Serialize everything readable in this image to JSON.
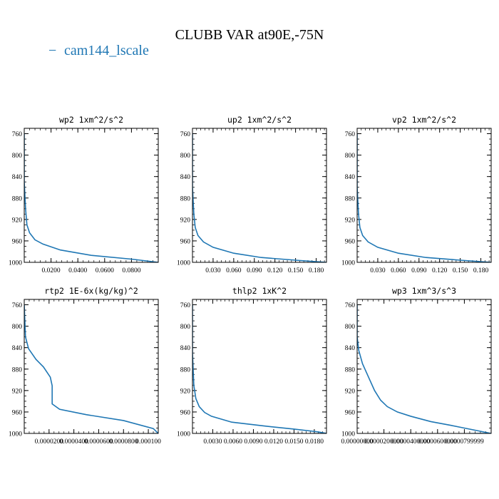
{
  "figure": {
    "title": "CLUBB VAR at90E,-75N",
    "legend": {
      "label": "cam144_lscale",
      "color": "#1f77b4",
      "marker": "−"
    }
  },
  "chart_data": [
    {
      "type": "line",
      "title": "wp2   1xm^2/s^2",
      "xlim": [
        0,
        0.1
      ],
      "ylim": [
        1000,
        750
      ],
      "xticks": [
        0.02,
        0.04,
        0.06,
        0.08
      ],
      "xtick_labels": [
        "0.0200",
        "0.0400",
        "0.0600",
        "0.0800"
      ],
      "yticks": [
        760,
        800,
        840,
        880,
        920,
        960,
        1000
      ],
      "ytick_labels": [
        "760",
        "800",
        "840",
        "880",
        "920",
        "960",
        "1000"
      ],
      "series": [
        {
          "x": [
            0.0,
            0.0,
            0.001,
            0.002,
            0.004,
            0.008,
            0.014,
            0.027,
            0.05,
            0.08,
            0.1
          ],
          "y": [
            760,
            850,
            900,
            930,
            945,
            958,
            966,
            977,
            987,
            994,
            1000
          ]
        }
      ]
    },
    {
      "type": "line",
      "title": "up2   1xm^2/s^2",
      "xlim": [
        0,
        0.195
      ],
      "ylim": [
        1000,
        750
      ],
      "xticks": [
        0.03,
        0.06,
        0.09,
        0.12,
        0.15,
        0.18
      ],
      "xtick_labels": [
        "0.030",
        "0.060",
        "0.090",
        "0.120",
        "0.150",
        "0.180"
      ],
      "series": [
        {
          "x": [
            0.0,
            0.0,
            0.002,
            0.004,
            0.008,
            0.016,
            0.03,
            0.06,
            0.1,
            0.15,
            0.195
          ],
          "y": [
            760,
            860,
            910,
            935,
            950,
            962,
            972,
            983,
            991,
            996,
            1000
          ]
        }
      ]
    },
    {
      "type": "line",
      "title": "vp2   1xm^2/s^2",
      "xlim": [
        0,
        0.195
      ],
      "ylim": [
        1000,
        750
      ],
      "xticks": [
        0.03,
        0.06,
        0.09,
        0.12,
        0.15,
        0.18
      ],
      "xtick_labels": [
        "0.030",
        "0.060",
        "0.090",
        "0.120",
        "0.150",
        "0.180"
      ],
      "series": [
        {
          "x": [
            0.0,
            0.0,
            0.002,
            0.004,
            0.008,
            0.016,
            0.03,
            0.06,
            0.1,
            0.15,
            0.195
          ],
          "y": [
            760,
            860,
            910,
            935,
            950,
            962,
            972,
            983,
            991,
            996,
            1000
          ]
        }
      ]
    },
    {
      "type": "line",
      "title": "rtp2   1E-6x(kg/kg)^2",
      "xlim": [
        0,
        0.000108
      ],
      "ylim": [
        1000,
        750
      ],
      "xticks": [
        2e-05,
        4e-05,
        6e-05,
        8e-05,
        0.0001
      ],
      "xtick_labels": [
        "0.0000200",
        "0.0000400",
        "0.0000600",
        "0.0000800",
        "0.000100"
      ],
      "series": [
        {
          "x": [
            0.0,
            1e-06,
            3.5e-06,
            9.5e-06,
            1.55e-05,
            2.1e-05,
            2.25e-05,
            2.25e-05,
            2.85e-05,
            5e-05,
            8e-05,
            0.000104,
            0.000108,
            6e-05,
            2e-05,
            0.0
          ],
          "y": [
            760,
            820,
            842,
            862,
            876,
            895,
            911,
            945,
            955,
            965,
            976,
            991,
            1000,
            1002,
            1003,
            1003
          ]
        }
      ]
    },
    {
      "type": "line",
      "title": "thlp2   1xK^2",
      "xlim": [
        0,
        0.0198
      ],
      "ylim": [
        1000,
        750
      ],
      "xticks": [
        0.003,
        0.006,
        0.009,
        0.012,
        0.015,
        0.018
      ],
      "xtick_labels": [
        "0.0030",
        "0.0060",
        "0.0090",
        "0.0120",
        "0.0150",
        "0.0180"
      ],
      "series": [
        {
          "x": [
            0.0,
            0.0,
            0.0002,
            0.0005,
            0.001,
            0.0018,
            0.0028,
            0.0058,
            0.0105,
            0.015,
            0.0185,
            0.0198,
            0.012,
            0.005,
            0.0
          ],
          "y": [
            760,
            850,
            910,
            935,
            950,
            961,
            968,
            979,
            986,
            992,
            997,
            1000,
            1001,
            1002,
            1002
          ]
        }
      ]
    },
    {
      "type": "line",
      "title": "wp3   1xm^3/s^3",
      "xlim": [
        0,
        9.99999e-05
      ],
      "ylim": [
        1000,
        750
      ],
      "xticks": [
        0.0,
        2e-05,
        4e-05,
        6e-05,
        8e-05
      ],
      "xtick_labels": [
        "0.00000000",
        "0.0000200000",
        "0.0000400000",
        "0.0000600000",
        "0.0000799999"
      ],
      "series": [
        {
          "x": [
            0.0,
            0.0,
            1.2e-06,
            4e-06,
            8.5e-06,
            1.3e-05,
            1.75e-05,
            2.25e-05,
            3e-05,
            4e-05,
            5.5e-05,
            7e-05,
            8e-05,
            9e-05,
            9.99e-05,
            9e-05,
            7e-05,
            5e-05,
            3e-05,
            1e-05,
            3e-06,
            0.0
          ],
          "y": [
            760,
            820,
            845,
            870,
            895,
            920,
            938,
            950,
            960,
            968,
            978,
            985,
            990,
            995,
            1000,
            1000,
            1001,
            1002,
            1003,
            1004,
            1004,
            1004
          ]
        }
      ]
    }
  ]
}
